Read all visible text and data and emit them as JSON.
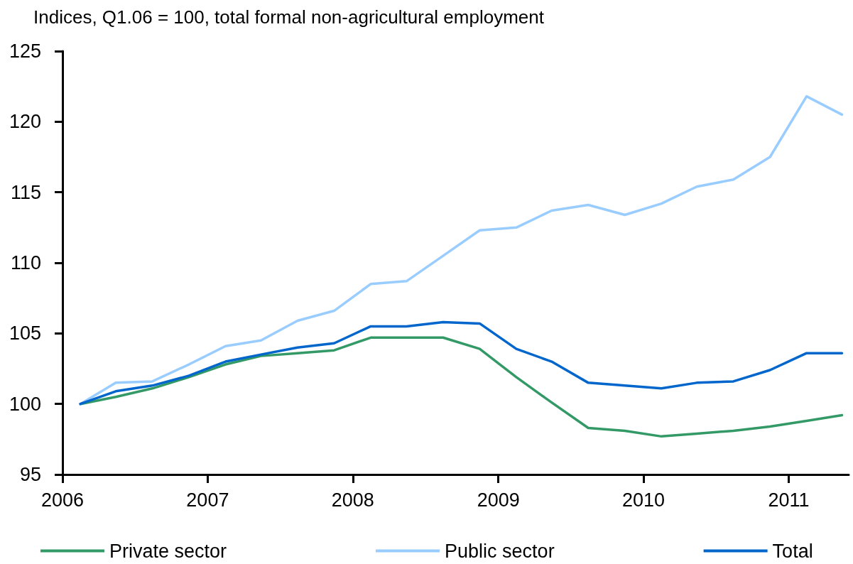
{
  "chart_data": {
    "type": "line",
    "title": "Indices, Q1.06 = 100, total formal non-agricultural employment",
    "x": [
      "2006-02-15",
      "2006-05-15",
      "2006-08-15",
      "2006-11-15",
      "2007-02-15",
      "2007-05-15",
      "2007-08-15",
      "2007-11-15",
      "2008-02-15",
      "2008-05-15",
      "2008-08-15",
      "2008-11-15",
      "2009-02-15",
      "2009-05-15",
      "2009-08-15",
      "2009-11-15",
      "2010-02-15",
      "2010-05-15",
      "2010-08-15",
      "2010-11-15",
      "2011-02-15",
      "2011-05-15"
    ],
    "series": [
      {
        "name": "Private sector",
        "color": "#339966",
        "values": [
          100,
          100.5,
          101.1,
          101.9,
          102.8,
          103.4,
          103.6,
          103.8,
          104.7,
          104.7,
          104.7,
          103.9,
          101.9,
          100.1,
          98.3,
          98.1,
          97.7,
          97.9,
          98.1,
          98.4,
          98.8,
          99.2
        ]
      },
      {
        "name": "Public sector",
        "color": "#99ccff",
        "values": [
          100,
          101.5,
          101.6,
          102.8,
          104.1,
          104.5,
          105.9,
          106.6,
          108.5,
          108.7,
          110.5,
          112.3,
          112.5,
          113.7,
          114.1,
          113.4,
          114.2,
          115.4,
          115.9,
          117.5,
          121.8,
          120.5
        ]
      },
      {
        "name": "Total",
        "color": "#0066cc",
        "values": [
          100,
          100.9,
          101.3,
          102.0,
          103.0,
          103.5,
          104.0,
          104.3,
          105.5,
          105.5,
          105.8,
          105.7,
          103.9,
          103.0,
          101.5,
          101.3,
          101.1,
          101.5,
          101.6,
          102.4,
          103.6,
          103.6
        ]
      }
    ],
    "xlim": [
      "2006",
      "2011-06"
    ],
    "xticks": [
      "2006",
      "2007",
      "2008",
      "2009",
      "2010",
      "2011"
    ],
    "ylim": [
      95,
      125
    ],
    "yticks": [
      95,
      100,
      105,
      110,
      115,
      120,
      125
    ],
    "legend": "bottom",
    "marker": "none",
    "line_style": "solid"
  }
}
